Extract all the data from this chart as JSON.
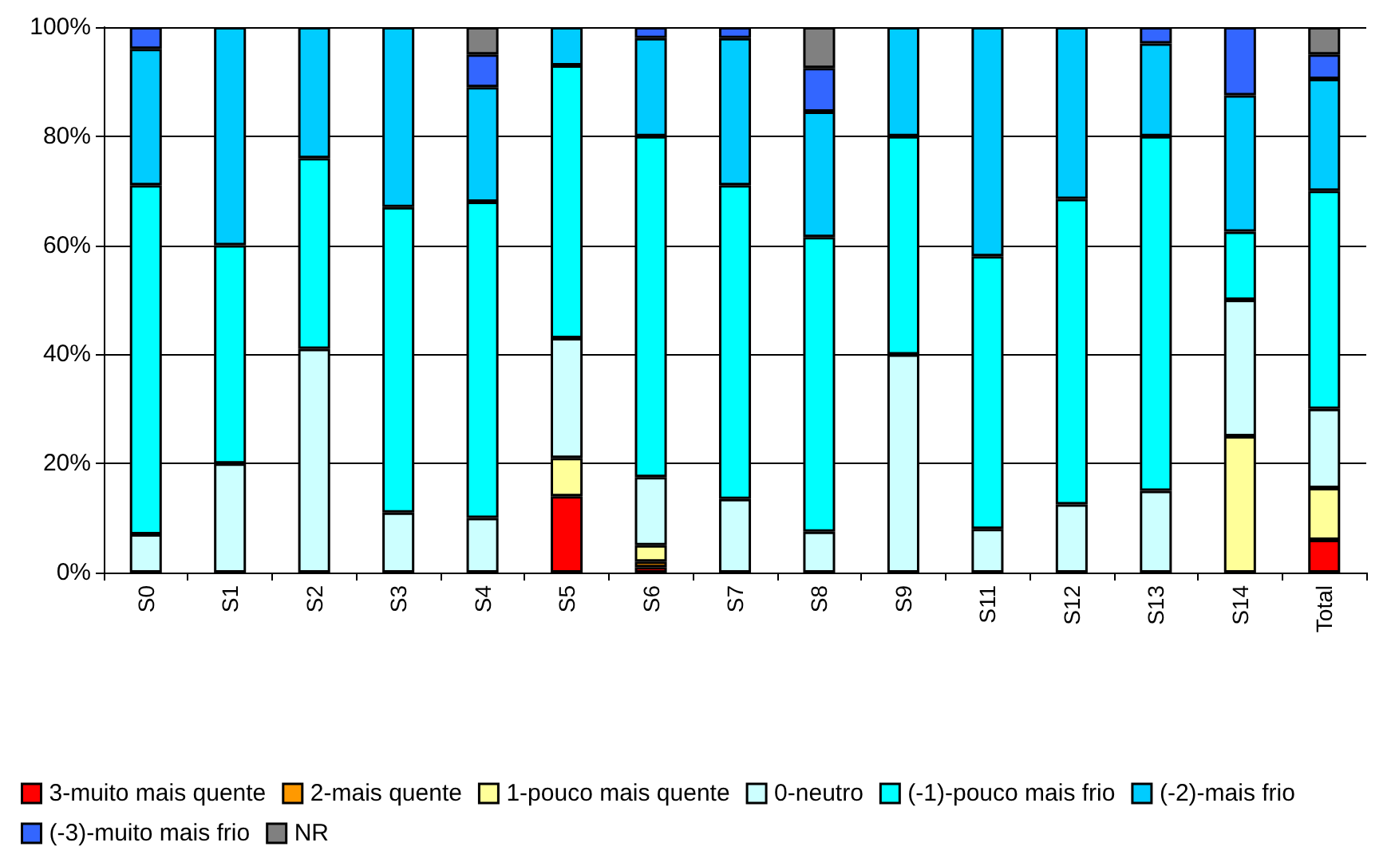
{
  "chart_data": {
    "type": "bar",
    "stacked": true,
    "categories": [
      "S0",
      "S1",
      "S2",
      "S3",
      "S4",
      "S5",
      "S6",
      "S7",
      "S8",
      "S9",
      "S11",
      "S12",
      "S13",
      "S14",
      "Total"
    ],
    "series": [
      {
        "name": "3-muito mais quente",
        "color": "#ff0000",
        "values": [
          null,
          null,
          null,
          null,
          null,
          14,
          1,
          null,
          null,
          null,
          null,
          null,
          null,
          null,
          6
        ]
      },
      {
        "name": "2-mais quente",
        "color": "#ff9900",
        "values": [
          null,
          null,
          null,
          null,
          null,
          null,
          1,
          null,
          null,
          null,
          null,
          null,
          null,
          null,
          null
        ]
      },
      {
        "name": "1-pouco mais quente",
        "color": "#ffff99",
        "values": [
          null,
          null,
          null,
          null,
          null,
          7,
          3,
          null,
          null,
          null,
          null,
          null,
          null,
          25,
          9.5
        ]
      },
      {
        "name": "0-neutro",
        "color": "#ccffff",
        "values": [
          7,
          20,
          41,
          11,
          10,
          22,
          12.5,
          13.5,
          7.5,
          40,
          8,
          12.5,
          15,
          25,
          14.5
        ]
      },
      {
        "name": "(-1)-pouco mais frio",
        "color": "#00ffff",
        "values": [
          64,
          40,
          35,
          56,
          58,
          50,
          62.5,
          57.5,
          54,
          40,
          50,
          56,
          65,
          12.5,
          40
        ]
      },
      {
        "name": "(-2)-mais frio",
        "color": "#00ccff",
        "values": [
          25,
          40,
          24,
          33,
          21,
          7,
          18,
          27,
          23,
          20,
          42,
          31.5,
          17,
          25,
          20.5
        ]
      },
      {
        "name": "(-3)-muito mais frio",
        "color": "#3366ff",
        "values": [
          4,
          null,
          null,
          null,
          6,
          null,
          2,
          2,
          8,
          null,
          null,
          null,
          3,
          12.5,
          4.5
        ]
      },
      {
        "name": "NR",
        "color": "#808080",
        "values": [
          null,
          null,
          null,
          null,
          5,
          null,
          null,
          null,
          7.5,
          null,
          null,
          null,
          null,
          null,
          5
        ]
      }
    ],
    "ylim": [
      0,
      100
    ],
    "yticks": [
      {
        "value": 0,
        "label": "0%"
      },
      {
        "value": 20,
        "label": "20%"
      },
      {
        "value": 40,
        "label": "40%"
      },
      {
        "value": 60,
        "label": "60%"
      },
      {
        "value": 80,
        "label": "80%"
      },
      {
        "value": 100,
        "label": "100%"
      }
    ],
    "grid": "y",
    "legend": "bottom"
  }
}
